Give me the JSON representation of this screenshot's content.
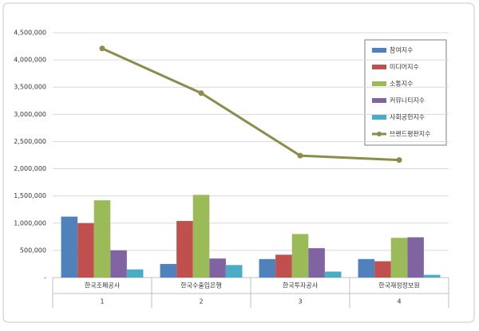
{
  "chart_data": {
    "type": "bar-line",
    "categories": [
      "한국조폐공사",
      "한국수출입은행",
      "한국투자공사",
      "한국재정정보원"
    ],
    "category_numbers": [
      "1",
      "2",
      "3",
      "4"
    ],
    "series": [
      {
        "name": "참여지수",
        "type": "bar",
        "color": "#4f81bd",
        "values": [
          1120000,
          250000,
          340000,
          340000
        ]
      },
      {
        "name": "미디어지수",
        "type": "bar",
        "color": "#c0504d",
        "values": [
          1000000,
          1040000,
          420000,
          300000
        ]
      },
      {
        "name": "소통지수",
        "type": "bar",
        "color": "#9bbb59",
        "values": [
          1420000,
          1520000,
          800000,
          730000
        ]
      },
      {
        "name": "커뮤니티지수",
        "type": "bar",
        "color": "#8064a2",
        "values": [
          500000,
          350000,
          540000,
          740000
        ]
      },
      {
        "name": "사회공헌지수",
        "type": "bar",
        "color": "#4bacc6",
        "values": [
          150000,
          230000,
          110000,
          50000
        ]
      },
      {
        "name": "브랜드평판지수",
        "type": "line",
        "color": "#8c8c4c",
        "values": [
          4210000,
          3390000,
          2240000,
          2160000
        ]
      }
    ],
    "ylim": [
      0,
      4500000
    ],
    "yticks": [
      {
        "value": 0,
        "label": "-"
      },
      {
        "value": 500000,
        "label": "500,000"
      },
      {
        "value": 1000000,
        "label": "1,000,000"
      },
      {
        "value": 1500000,
        "label": "1,500,000"
      },
      {
        "value": 2000000,
        "label": "2,000,000"
      },
      {
        "value": 2500000,
        "label": "2,500,000"
      },
      {
        "value": 3000000,
        "label": "3,000,000"
      },
      {
        "value": 3500000,
        "label": "3,500,000"
      },
      {
        "value": 4000000,
        "label": "4,000,000"
      },
      {
        "value": 4500000,
        "label": "4,500,000"
      }
    ],
    "grid": true,
    "legend": "top-right"
  }
}
